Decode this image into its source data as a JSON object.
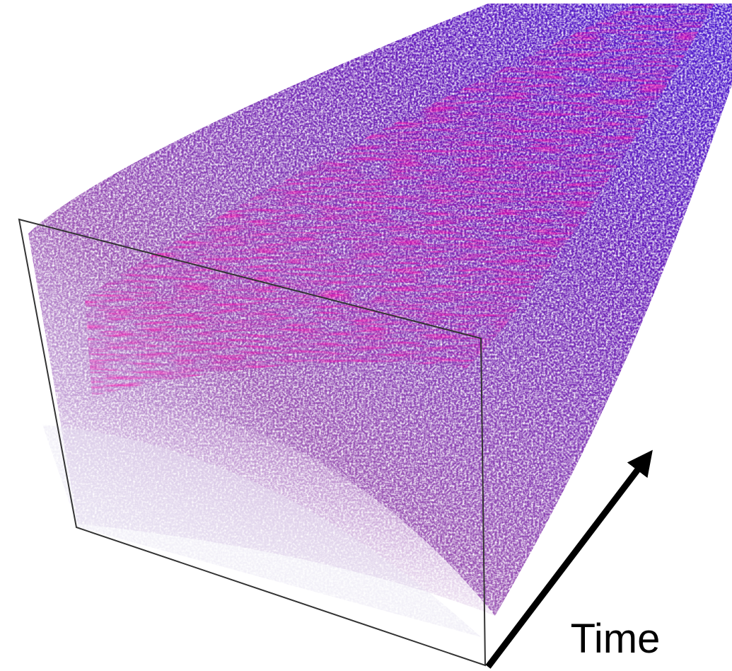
{
  "label": "Time"
}
